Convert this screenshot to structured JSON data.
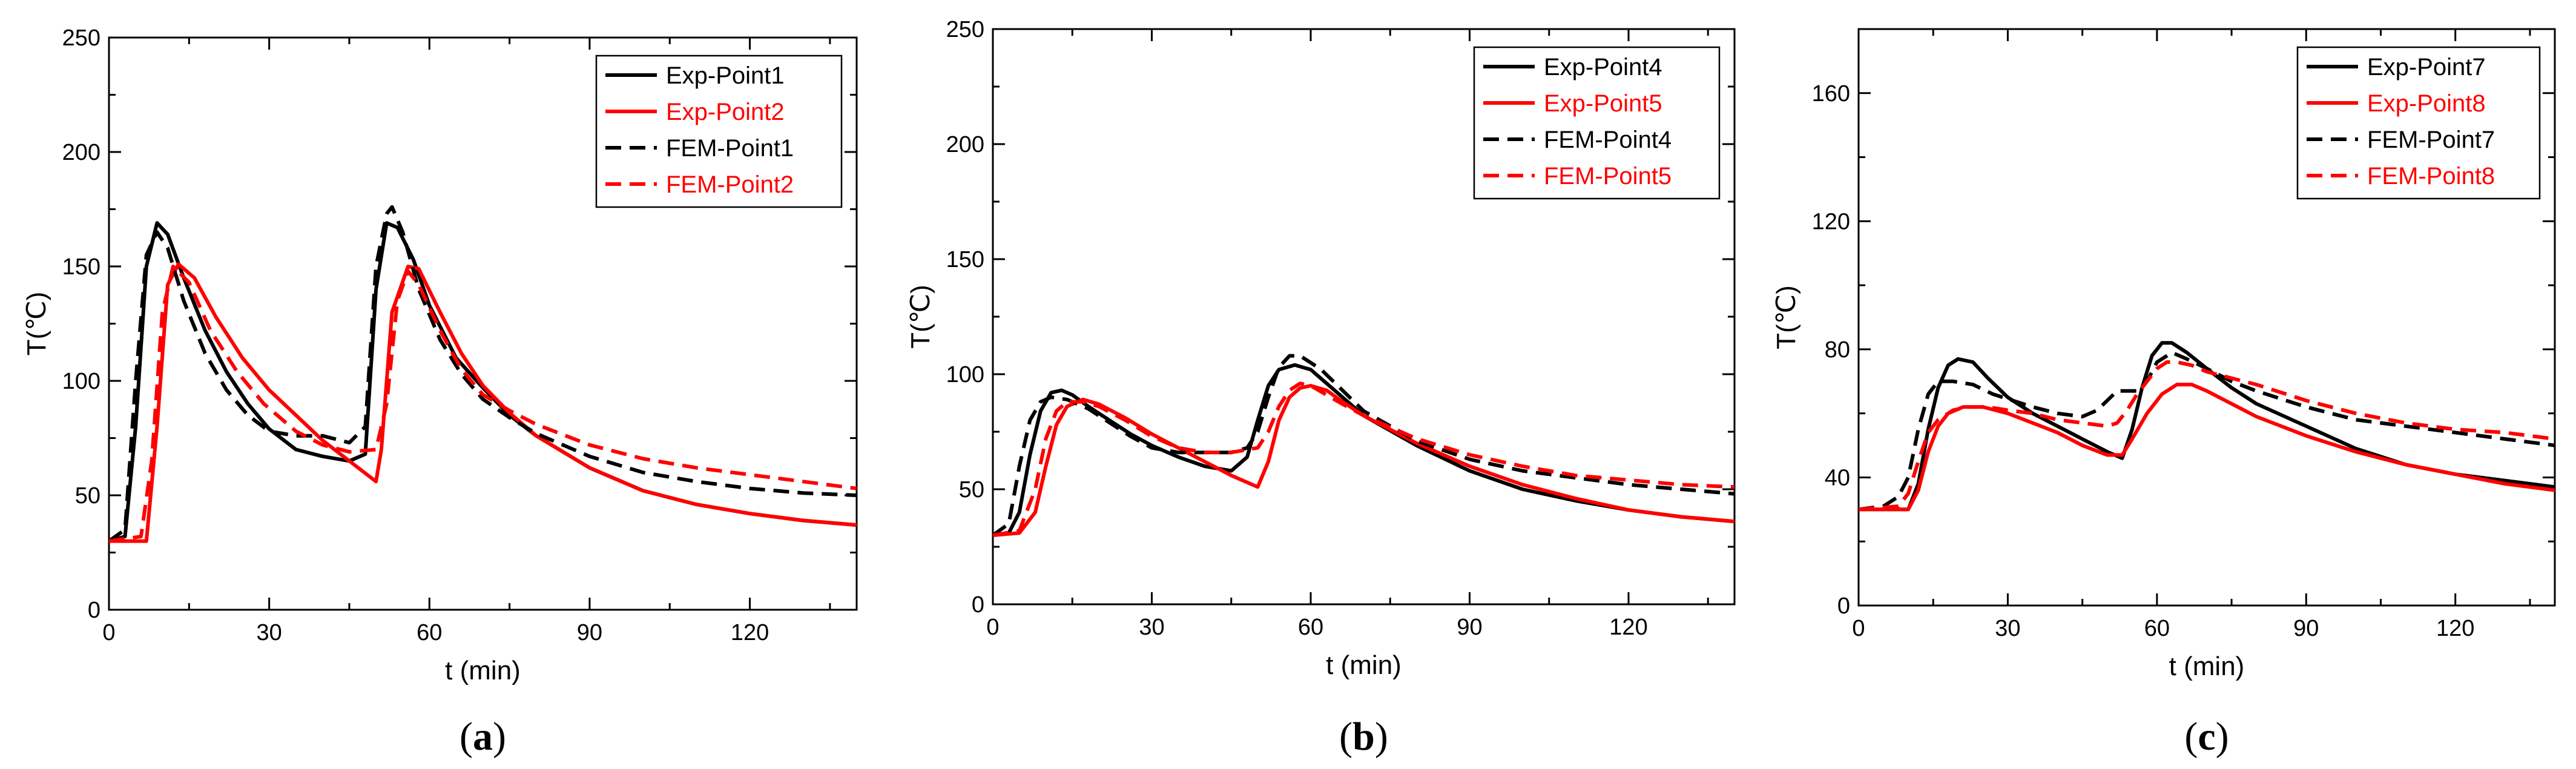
{
  "colors": {
    "black": "#000000",
    "red": "#ff0000"
  },
  "chart_data": [
    {
      "type": "line",
      "panel_label": "a",
      "xlabel": "t (min)",
      "ylabel": "T(℃)",
      "xlim": [
        0,
        140
      ],
      "ylim": [
        0,
        250
      ],
      "xticks": [
        0,
        30,
        60,
        90,
        120
      ],
      "yticks": [
        0,
        50,
        100,
        150,
        200,
        250
      ],
      "legend_position": "top-right",
      "series": [
        {
          "name": "Exp-Point1",
          "color": "#000000",
          "dashed": false,
          "x": [
            0,
            3,
            5,
            7,
            9,
            11,
            14,
            18,
            22,
            26,
            30,
            35,
            40,
            45,
            48,
            50,
            52,
            54,
            57,
            60,
            65,
            70,
            75,
            80,
            90,
            100,
            110,
            120,
            130,
            140
          ],
          "y": [
            30,
            32,
            80,
            150,
            169,
            164,
            145,
            122,
            104,
            90,
            79,
            70,
            67,
            65,
            68,
            140,
            169,
            167,
            153,
            133,
            110,
            97,
            85,
            76,
            62,
            52,
            46,
            42,
            39,
            37
          ]
        },
        {
          "name": "Exp-Point2",
          "color": "#ff0000",
          "dashed": false,
          "x": [
            0,
            7,
            9,
            11,
            13,
            16,
            20,
            25,
            30,
            35,
            40,
            45,
            50,
            51,
            53,
            56,
            58,
            62,
            66,
            70,
            75,
            80,
            90,
            100,
            110,
            120,
            130,
            140
          ],
          "y": [
            30,
            30,
            80,
            142,
            151,
            145,
            128,
            110,
            96,
            85,
            74,
            65,
            56,
            70,
            130,
            150,
            149,
            130,
            112,
            98,
            86,
            76,
            62,
            52,
            46,
            42,
            39,
            37
          ]
        },
        {
          "name": "FEM-Point1",
          "color": "#000000",
          "dashed": true,
          "x": [
            0,
            3,
            5,
            7,
            9,
            11,
            14,
            18,
            22,
            26,
            30,
            35,
            40,
            45,
            48,
            50,
            52,
            53,
            55,
            58,
            62,
            66,
            70,
            75,
            80,
            90,
            100,
            110,
            120,
            130,
            140
          ],
          "y": [
            30,
            35,
            100,
            155,
            165,
            158,
            135,
            112,
            96,
            85,
            78,
            76,
            76,
            73,
            80,
            150,
            173,
            176,
            165,
            140,
            118,
            103,
            92,
            84,
            77,
            67,
            60,
            56,
            53,
            51,
            50
          ]
        },
        {
          "name": "FEM-Point2",
          "color": "#ff0000",
          "dashed": true,
          "x": [
            0,
            6,
            8,
            10,
            12,
            15,
            19,
            24,
            29,
            35,
            40,
            45,
            50,
            52,
            54,
            56,
            58,
            62,
            66,
            70,
            75,
            80,
            90,
            100,
            110,
            120,
            130,
            140
          ],
          "y": [
            30,
            32,
            65,
            130,
            150,
            143,
            122,
            104,
            90,
            78,
            72,
            69,
            70,
            90,
            135,
            148,
            142,
            122,
            105,
            94,
            87,
            81,
            72,
            66,
            62,
            59,
            56,
            53
          ]
        }
      ]
    },
    {
      "type": "line",
      "panel_label": "b",
      "xlabel": "t (min)",
      "ylabel": "T(℃)",
      "xlim": [
        0,
        140
      ],
      "ylim": [
        0,
        250
      ],
      "xticks": [
        0,
        30,
        60,
        90,
        120
      ],
      "yticks": [
        0,
        50,
        100,
        150,
        200,
        250
      ],
      "legend_position": "top-right",
      "series": [
        {
          "name": "Exp-Point4",
          "color": "#000000",
          "dashed": false,
          "x": [
            0,
            3,
            5,
            7,
            9,
            11,
            13,
            15,
            18,
            22,
            26,
            30,
            35,
            40,
            45,
            48,
            50,
            52,
            54,
            57,
            60,
            65,
            70,
            80,
            90,
            100,
            110,
            120,
            130,
            140
          ],
          "y": [
            30,
            31,
            40,
            65,
            84,
            92,
            93,
            91,
            86,
            80,
            74,
            69,
            64,
            60,
            58,
            64,
            80,
            95,
            102,
            104,
            102,
            92,
            82,
            69,
            58,
            50,
            45,
            41,
            38,
            36
          ]
        },
        {
          "name": "Exp-Point5",
          "color": "#ff0000",
          "dashed": false,
          "x": [
            0,
            5,
            8,
            10,
            12,
            14,
            17,
            20,
            25,
            30,
            35,
            40,
            45,
            50,
            52,
            54,
            56,
            58,
            60,
            63,
            66,
            70,
            80,
            90,
            100,
            110,
            120,
            130,
            140
          ],
          "y": [
            30,
            31,
            40,
            60,
            78,
            86,
            89,
            87,
            81,
            74,
            68,
            62,
            56,
            51,
            62,
            80,
            90,
            94,
            95,
            93,
            88,
            82,
            70,
            60,
            52,
            46,
            41,
            38,
            36
          ]
        },
        {
          "name": "FEM-Point4",
          "color": "#000000",
          "dashed": true,
          "x": [
            0,
            3,
            5,
            7,
            9,
            11,
            14,
            18,
            22,
            26,
            30,
            35,
            40,
            45,
            48,
            50,
            52,
            54,
            56,
            58,
            62,
            66,
            70,
            80,
            90,
            100,
            110,
            120,
            130,
            140
          ],
          "y": [
            30,
            35,
            60,
            80,
            88,
            90,
            89,
            85,
            79,
            73,
            68,
            66,
            66,
            66,
            68,
            75,
            90,
            103,
            108,
            108,
            102,
            93,
            84,
            71,
            63,
            58,
            55,
            52,
            50,
            48
          ]
        },
        {
          "name": "FEM-Point5",
          "color": "#ff0000",
          "dashed": true,
          "x": [
            0,
            5,
            8,
            10,
            12,
            14,
            17,
            20,
            25,
            30,
            35,
            40,
            45,
            50,
            52,
            54,
            56,
            58,
            60,
            63,
            66,
            70,
            80,
            90,
            100,
            110,
            120,
            130,
            140
          ],
          "y": [
            30,
            32,
            50,
            72,
            84,
            88,
            88,
            86,
            80,
            73,
            68,
            66,
            66,
            68,
            75,
            86,
            93,
            96,
            95,
            91,
            87,
            82,
            72,
            65,
            60,
            56,
            54,
            52,
            51
          ]
        }
      ]
    },
    {
      "type": "line",
      "panel_label": "c",
      "xlabel": "t (min)",
      "ylabel": "T(℃)",
      "xlim": [
        0,
        140
      ],
      "ylim": [
        0,
        180
      ],
      "xticks": [
        0,
        30,
        60,
        90,
        120
      ],
      "yticks": [
        0,
        40,
        80,
        120,
        160
      ],
      "legend_position": "top-right",
      "series": [
        {
          "name": "Exp-Point7",
          "color": "#000000",
          "dashed": false,
          "x": [
            0,
            10,
            12,
            14,
            16,
            18,
            20,
            23,
            26,
            30,
            35,
            40,
            45,
            50,
            53,
            55,
            57,
            59,
            61,
            63,
            66,
            70,
            75,
            80,
            90,
            100,
            110,
            120,
            130,
            140
          ],
          "y": [
            30,
            30,
            38,
            55,
            68,
            75,
            77,
            76,
            71,
            65,
            60,
            56,
            52,
            48,
            46,
            55,
            68,
            78,
            82,
            82,
            79,
            74,
            68,
            63,
            56,
            49,
            44,
            41,
            39,
            37
          ]
        },
        {
          "name": "Exp-Point8",
          "color": "#ff0000",
          "dashed": false,
          "x": [
            0,
            10,
            12,
            14,
            16,
            18,
            21,
            25,
            30,
            35,
            40,
            45,
            50,
            53,
            55,
            58,
            61,
            64,
            67,
            70,
            75,
            80,
            90,
            100,
            110,
            120,
            130,
            140
          ],
          "y": [
            30,
            30,
            36,
            48,
            56,
            60,
            62,
            62,
            60,
            57,
            54,
            50,
            47,
            47,
            52,
            60,
            66,
            69,
            69,
            67,
            63,
            59,
            53,
            48,
            44,
            41,
            38,
            36
          ]
        },
        {
          "name": "FEM-Point7",
          "color": "#000000",
          "dashed": true,
          "x": [
            0,
            5,
            8,
            10,
            12,
            14,
            16,
            19,
            23,
            27,
            31,
            35,
            40,
            45,
            48,
            50,
            52,
            54,
            56,
            58,
            60,
            63,
            66,
            70,
            75,
            80,
            90,
            100,
            110,
            120,
            130,
            140
          ],
          "y": [
            30,
            31,
            34,
            40,
            55,
            66,
            70,
            70,
            69,
            66,
            64,
            62,
            60,
            59,
            61,
            64,
            67,
            67,
            67,
            70,
            76,
            79,
            77,
            74,
            70,
            67,
            62,
            58,
            56,
            54,
            52,
            50
          ]
        },
        {
          "name": "FEM-Point8",
          "color": "#ff0000",
          "dashed": true,
          "x": [
            0,
            8,
            10,
            12,
            14,
            16,
            19,
            22,
            26,
            30,
            35,
            40,
            45,
            50,
            52,
            54,
            56,
            58,
            60,
            62,
            64,
            67,
            70,
            75,
            80,
            90,
            100,
            110,
            120,
            130,
            140
          ],
          "y": [
            30,
            31,
            35,
            45,
            54,
            58,
            61,
            62,
            62,
            61,
            60,
            58,
            57,
            56,
            57,
            61,
            66,
            70,
            74,
            76,
            76,
            75,
            73,
            71,
            69,
            64,
            60,
            57,
            55,
            54,
            52
          ]
        }
      ]
    }
  ]
}
